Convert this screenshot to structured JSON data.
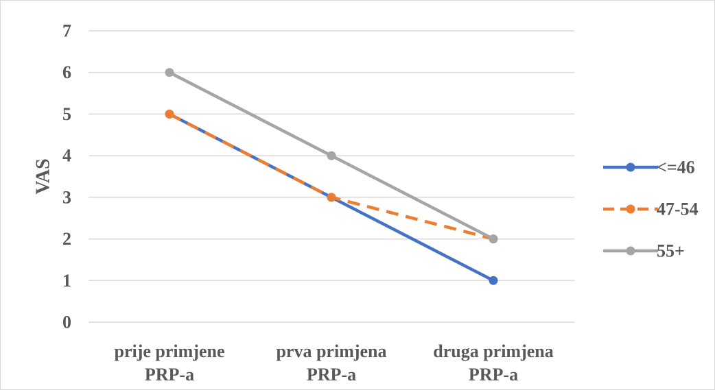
{
  "chart_data": {
    "type": "line",
    "categories": [
      [
        "prije primjene",
        "PRP-a"
      ],
      [
        "prva primjena",
        "PRP-a"
      ],
      [
        "druga primjena",
        "PRP-a"
      ]
    ],
    "ylabel": "VAS",
    "ylim": [
      0,
      7
    ],
    "yticks": [
      "0",
      "1",
      "2",
      "3",
      "4",
      "5",
      "6",
      "7"
    ],
    "grid": true,
    "legend_position": "right",
    "series": [
      {
        "name": "<=46",
        "values": [
          5,
          3,
          1
        ],
        "color": "#4472c4",
        "dash": "solid"
      },
      {
        "name": "47-54",
        "values": [
          5,
          3,
          2
        ],
        "color": "#ed7d31",
        "dash": "dashed"
      },
      {
        "name": "55+",
        "values": [
          6,
          4,
          2
        ],
        "color": "#a5a5a5",
        "dash": "solid"
      }
    ]
  }
}
